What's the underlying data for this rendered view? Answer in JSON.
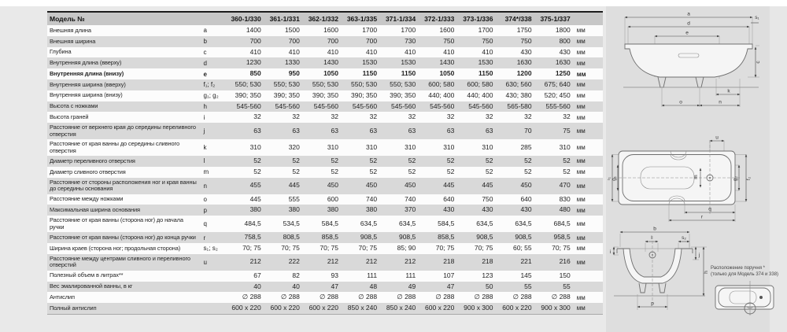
{
  "table": {
    "header": {
      "label": "Модель №",
      "models": [
        "360-1/330",
        "361-1/331",
        "362-1/332",
        "363-1/335",
        "371-1/334",
        "372-1/333",
        "373-1/336",
        "374*/338",
        "375-1/337"
      ]
    },
    "rows": [
      {
        "label": "Внешняя длина",
        "letter": "a",
        "values": [
          "1400",
          "1500",
          "1600",
          "1700",
          "1700",
          "1600",
          "1700",
          "1750",
          "1800"
        ],
        "unit": "мм",
        "bold": false
      },
      {
        "label": "Внешняя ширина",
        "letter": "b",
        "values": [
          "700",
          "700",
          "700",
          "700",
          "730",
          "750",
          "750",
          "750",
          "800"
        ],
        "unit": "мм",
        "bold": false
      },
      {
        "label": "Глубина",
        "letter": "c",
        "values": [
          "410",
          "410",
          "410",
          "410",
          "410",
          "410",
          "410",
          "430",
          "430"
        ],
        "unit": "мм",
        "bold": false
      },
      {
        "label": "Внутренняя длина (вверху)",
        "letter": "d",
        "values": [
          "1230",
          "1330",
          "1430",
          "1530",
          "1530",
          "1430",
          "1530",
          "1630",
          "1630"
        ],
        "unit": "мм",
        "bold": false
      },
      {
        "label": "Внутренняя длина (внизу)",
        "letter": "e",
        "values": [
          "850",
          "950",
          "1050",
          "1150",
          "1150",
          "1050",
          "1150",
          "1200",
          "1250"
        ],
        "unit": "мм",
        "bold": true
      },
      {
        "label": "Внутренняя ширина (вверху)",
        "letter": "f₁; f₂",
        "values": [
          "550; 530",
          "550; 530",
          "550; 530",
          "550; 530",
          "550; 530",
          "600; 580",
          "600; 580",
          "630; 560",
          "675; 640"
        ],
        "unit": "мм",
        "bold": false
      },
      {
        "label": "Внутренняя ширина (внизу)",
        "letter": "g₁; g₂",
        "values": [
          "390; 350",
          "390; 350",
          "390; 350",
          "390; 350",
          "390; 350",
          "440; 400",
          "440; 400",
          "430; 380",
          "520; 450"
        ],
        "unit": "мм",
        "bold": false
      },
      {
        "label": "Высота с ножками",
        "letter": "h",
        "values": [
          "545-560",
          "545-560",
          "545-560",
          "545-560",
          "545-560",
          "545-560",
          "545-560",
          "565-580",
          "555-560"
        ],
        "unit": "мм",
        "bold": false
      },
      {
        "label": "Высота граней",
        "letter": "i",
        "values": [
          "32",
          "32",
          "32",
          "32",
          "32",
          "32",
          "32",
          "32",
          "32"
        ],
        "unit": "мм",
        "bold": false
      },
      {
        "label": "Расстояние от верхнего края до середины переливного отверстия",
        "letter": "j",
        "values": [
          "63",
          "63",
          "63",
          "63",
          "63",
          "63",
          "63",
          "70",
          "75"
        ],
        "unit": "мм",
        "bold": false
      },
      {
        "label": "Расстояние от края ванны до середины сливного отверстия",
        "letter": "k",
        "values": [
          "310",
          "320",
          "310",
          "310",
          "310",
          "310",
          "310",
          "285",
          "310"
        ],
        "unit": "мм",
        "bold": false
      },
      {
        "label": "Диаметр переливного отверстия",
        "letter": "l",
        "values": [
          "52",
          "52",
          "52",
          "52",
          "52",
          "52",
          "52",
          "52",
          "52"
        ],
        "unit": "мм",
        "bold": false
      },
      {
        "label": "Диаметр сливного отверстия",
        "letter": "m",
        "values": [
          "52",
          "52",
          "52",
          "52",
          "52",
          "52",
          "52",
          "52",
          "52"
        ],
        "unit": "мм",
        "bold": false
      },
      {
        "label": "Расстояние от стороны расположения ног и края ванны до середины основания",
        "letter": "n",
        "values": [
          "455",
          "445",
          "450",
          "450",
          "450",
          "445",
          "445",
          "450",
          "470"
        ],
        "unit": "мм",
        "bold": false
      },
      {
        "label": "Расстояние между ножками",
        "letter": "o",
        "values": [
          "445",
          "555",
          "600",
          "740",
          "740",
          "640",
          "750",
          "640",
          "830"
        ],
        "unit": "мм",
        "bold": false
      },
      {
        "label": "Максимальная ширина основания",
        "letter": "p",
        "values": [
          "380",
          "380",
          "380",
          "380",
          "370",
          "430",
          "430",
          "430",
          "480"
        ],
        "unit": "мм",
        "bold": false
      },
      {
        "label": "Расстояние от края ванны (сторона ног) до начала ручки",
        "letter": "q",
        "values": [
          "484,5",
          "534,5",
          "584,5",
          "634,5",
          "634,5",
          "584,5",
          "634,5",
          "634,5",
          "684,5"
        ],
        "unit": "мм",
        "bold": false
      },
      {
        "label": "Расстояние от края ванны (сторона ног) до конца ручки",
        "letter": "r",
        "values": [
          "758,5",
          "808,5",
          "858,5",
          "908,5",
          "908,5",
          "858,5",
          "908,5",
          "908,5",
          "958,5"
        ],
        "unit": "мм",
        "bold": false
      },
      {
        "label": "Ширина краев (сторона ног; продольная сторона)",
        "letter": "s₁; s₂",
        "values": [
          "70; 75",
          "70; 75",
          "70; 75",
          "70; 75",
          "85; 90",
          "70; 75",
          "70; 75",
          "60; 55",
          "70; 75"
        ],
        "unit": "мм",
        "bold": false
      },
      {
        "label": "Расстояние между центрами сливного и переливного отверстий",
        "letter": "u",
        "values": [
          "212",
          "222",
          "212",
          "212",
          "212",
          "218",
          "218",
          "221",
          "216"
        ],
        "unit": "мм",
        "bold": false
      },
      {
        "label": "Полезный объем в литрах**",
        "letter": "",
        "values": [
          "67",
          "82",
          "93",
          "111",
          "111",
          "107",
          "123",
          "145",
          "150"
        ],
        "unit": "",
        "bold": false
      },
      {
        "label": "Вес эмалированной ванны, в кг",
        "letter": "",
        "values": [
          "40",
          "40",
          "47",
          "48",
          "49",
          "47",
          "50",
          "55",
          "55"
        ],
        "unit": "",
        "bold": false
      },
      {
        "label": "Антислип",
        "letter": "",
        "values": [
          "∅ 288",
          "∅ 288",
          "∅ 288",
          "∅ 288",
          "∅ 288",
          "∅ 288",
          "∅ 288",
          "∅ 288",
          "∅ 288"
        ],
        "unit": "мм",
        "bold": false
      },
      {
        "label": "Полный антислип",
        "letter": "",
        "values": [
          "600 x 220",
          "600 x 220",
          "600 x 220",
          "850 x 240",
          "850 x 240",
          "600 x 220",
          "900 x 300",
          "600 x 220",
          "900 x 300"
        ],
        "unit": "мм",
        "bold": false
      }
    ]
  },
  "diagrams": {
    "side": {
      "a": "a",
      "d": "d",
      "e": "e",
      "s1": "s₁",
      "c": "c",
      "k": "k",
      "n": "n",
      "o": "o"
    },
    "top": {
      "u": "u",
      "m": "m",
      "f1": "f₁",
      "g1": "g₁",
      "g2": "g₂",
      "f2": "f₂",
      "q": "q",
      "r": "r"
    },
    "section": {
      "b": "b",
      "l": "l",
      "s2": "s₂",
      "i": "i",
      "j": "j",
      "h": "h",
      "p": "p"
    },
    "note_line1": "Расположение поручня *",
    "note_line2": "(только для Модель 374 и 338)"
  },
  "palette": {
    "header_bg": "#c7c7c7",
    "row_alt_bg": "#d9d9d9",
    "row_bg": "#fcfcfc",
    "background": "#e9e9e9",
    "line": "#6e6e6e"
  }
}
